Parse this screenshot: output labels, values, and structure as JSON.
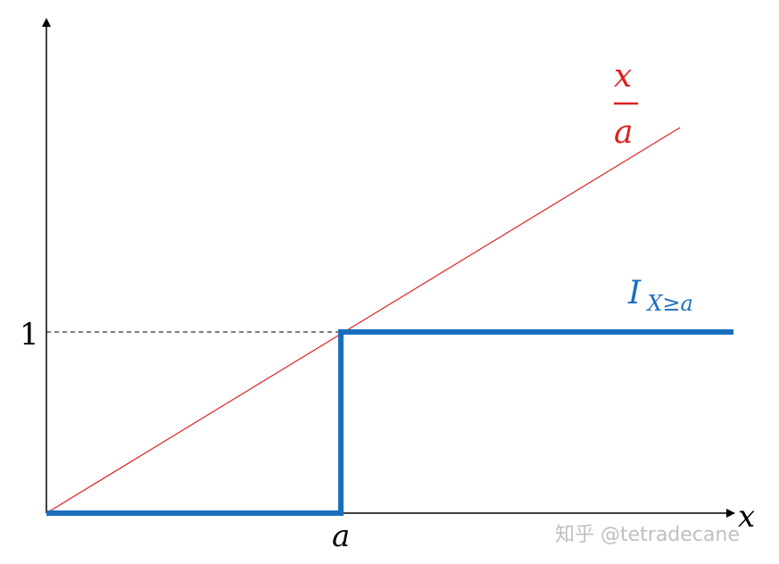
{
  "diagram": {
    "x_axis_label": "x",
    "tick_a_label": "a",
    "tick_one_label": "1",
    "ratio_numerator": "x",
    "ratio_denominator": "a",
    "indicator_main": "I",
    "indicator_subscript": "X≥a",
    "watermark": "知乎 @tetradecane"
  },
  "colors": {
    "axis": "#000000",
    "ratio_line": "#e02020",
    "indicator": "#1a6fbd",
    "watermark": "#bfbfbf"
  }
}
